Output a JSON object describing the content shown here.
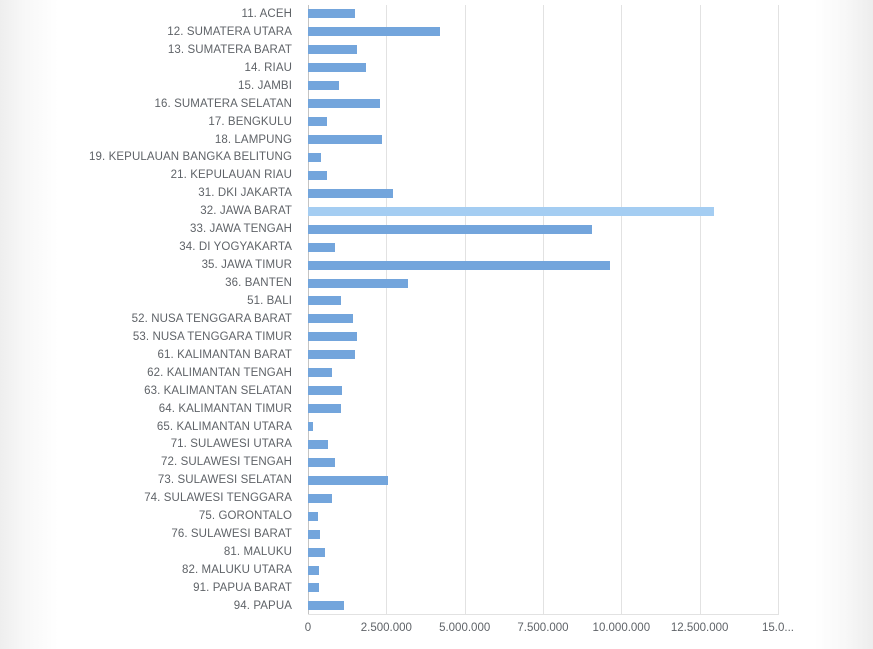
{
  "page": {
    "background": "#ffffff",
    "edge_shadow_color": "#ededed"
  },
  "chart_data": {
    "type": "bar",
    "orientation": "horizontal",
    "title": "",
    "xlabel": "",
    "ylabel": "",
    "legend": "none",
    "grid": true,
    "bar_color": "#73a5dc",
    "highlight_color": "#a4cdf2",
    "highlighted_index": 11,
    "categories": [
      "11. ACEH",
      "12. SUMATERA UTARA",
      "13. SUMATERA BARAT",
      "14. RIAU",
      "15. JAMBI",
      "16. SUMATERA SELATAN",
      "17. BENGKULU",
      "18. LAMPUNG",
      "19. KEPULAUAN BANGKA BELITUNG",
      "21. KEPULAUAN RIAU",
      "31. DKI JAKARTA",
      "32. JAWA BARAT",
      "33. JAWA TENGAH",
      "34. DI YOGYAKARTA",
      "35. JAWA TIMUR",
      "36. BANTEN",
      "51. BALI",
      "52. NUSA TENGGARA BARAT",
      "53. NUSA TENGGARA TIMUR",
      "61. KALIMANTAN BARAT",
      "62. KALIMANTAN TENGAH",
      "63. KALIMANTAN SELATAN",
      "64. KALIMANTAN TIMUR",
      "65. KALIMANTAN UTARA",
      "71. SULAWESI UTARA",
      "72. SULAWESI TENGAH",
      "73. SULAWESI SELATAN",
      "74. SULAWESI TENGGARA",
      "75. GORONTALO",
      "76. SULAWESI BARAT",
      "81. MALUKU",
      "82. MALUKU UTARA",
      "91. PAPUA BARAT",
      "94. PAPUA"
    ],
    "values": [
      1500000,
      4200000,
      1550000,
      1850000,
      1000000,
      2300000,
      600000,
      2350000,
      400000,
      600000,
      2700000,
      12950000,
      9050000,
      850000,
      9650000,
      3200000,
      1050000,
      1450000,
      1550000,
      1500000,
      750000,
      1100000,
      1050000,
      150000,
      650000,
      850000,
      2550000,
      750000,
      330000,
      380000,
      550000,
      360000,
      340000,
      1150000
    ],
    "x_axis": {
      "min": 0,
      "max": 15000000,
      "ticks": [
        {
          "value": 0,
          "label": "0"
        },
        {
          "value": 2500000,
          "label": "2.500.000"
        },
        {
          "value": 5000000,
          "label": "5.000.000"
        },
        {
          "value": 7500000,
          "label": "7.500.000"
        },
        {
          "value": 10000000,
          "label": "10.000.000"
        },
        {
          "value": 12500000,
          "label": "12.500.000"
        },
        {
          "value": 15000000,
          "label": "15.0..."
        }
      ]
    }
  }
}
